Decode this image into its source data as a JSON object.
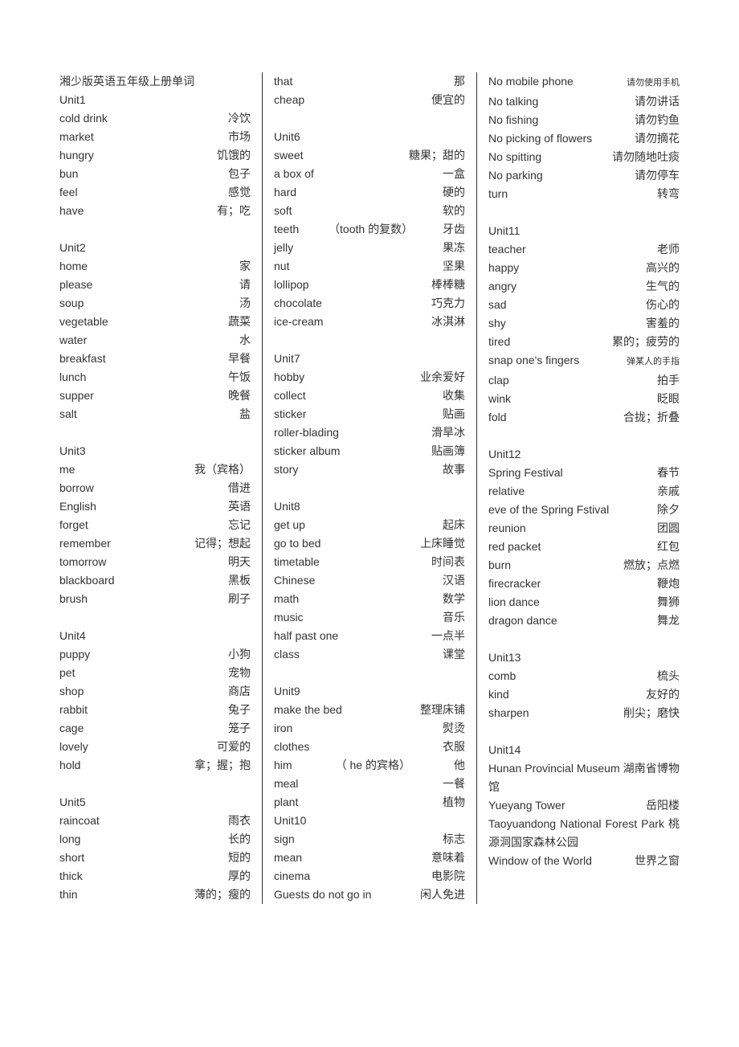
{
  "title": "湘少版英语五年级上册单词",
  "columns": [
    [
      {
        "type": "title"
      },
      {
        "type": "unit",
        "t": "Unit1"
      },
      {
        "type": "row",
        "en": "cold drink",
        "zh": "冷饮"
      },
      {
        "type": "row",
        "en": "market",
        "zh": "市场"
      },
      {
        "type": "row",
        "en": "hungry",
        "zh": "饥饿的"
      },
      {
        "type": "row",
        "en": "bun",
        "zh": "包子"
      },
      {
        "type": "row",
        "en": "feel",
        "zh": "感觉"
      },
      {
        "type": "row",
        "en": "have",
        "zh": "有；吃"
      },
      {
        "type": "blank"
      },
      {
        "type": "unit",
        "t": "Unit2"
      },
      {
        "type": "row",
        "en": "home",
        "zh": "家"
      },
      {
        "type": "row",
        "en": "please",
        "zh": "请"
      },
      {
        "type": "row",
        "en": "soup",
        "zh": "汤"
      },
      {
        "type": "row",
        "en": "vegetable",
        "zh": "蔬菜"
      },
      {
        "type": "row",
        "en": "water",
        "zh": "水"
      },
      {
        "type": "row",
        "en": "breakfast",
        "zh": "早餐"
      },
      {
        "type": "row",
        "en": "lunch",
        "zh": "午饭"
      },
      {
        "type": "row",
        "en": "supper",
        "zh": "晚餐"
      },
      {
        "type": "row",
        "en": "salt",
        "zh": "盐"
      },
      {
        "type": "blank"
      },
      {
        "type": "unit",
        "t": "Unit3"
      },
      {
        "type": "row",
        "en": "me",
        "zh": "我（宾格）"
      },
      {
        "type": "row",
        "en": "borrow",
        "zh": "借进"
      },
      {
        "type": "row",
        "en": "English",
        "zh": "英语"
      },
      {
        "type": "row",
        "en": "forget",
        "zh": "忘记"
      },
      {
        "type": "row",
        "en": "remember",
        "zh": "记得；想起"
      },
      {
        "type": "row",
        "en": "tomorrow",
        "zh": "明天"
      },
      {
        "type": "row",
        "en": "blackboard",
        "zh": "黑板"
      },
      {
        "type": "row",
        "en": "brush",
        "zh": "刷子"
      },
      {
        "type": "blank"
      },
      {
        "type": "unit",
        "t": "Unit4"
      },
      {
        "type": "row",
        "en": "puppy",
        "zh": "小狗"
      },
      {
        "type": "row",
        "en": "pet",
        "zh": "宠物"
      },
      {
        "type": "row",
        "en": "shop",
        "zh": "商店"
      },
      {
        "type": "row",
        "en": "rabbit",
        "zh": "兔子"
      },
      {
        "type": "row",
        "en": "cage",
        "zh": "笼子"
      },
      {
        "type": "row",
        "en": "lovely",
        "zh": "可爱的"
      },
      {
        "type": "row",
        "en": "hold",
        "zh": "拿；握；抱"
      },
      {
        "type": "blank"
      },
      {
        "type": "unit",
        "t": "Unit5"
      },
      {
        "type": "row",
        "en": "raincoat",
        "zh": "雨衣"
      },
      {
        "type": "row",
        "en": "long",
        "zh": "长的"
      },
      {
        "type": "row",
        "en": "short",
        "zh": "短的"
      },
      {
        "type": "row",
        "en": "thick",
        "zh": "厚的"
      },
      {
        "type": "row",
        "en": "thin",
        "zh": "薄的；瘦的"
      }
    ],
    [
      {
        "type": "row",
        "en": "that",
        "zh": "那"
      },
      {
        "type": "row",
        "en": "cheap",
        "zh": "便宜的"
      },
      {
        "type": "blank"
      },
      {
        "type": "unit",
        "t": "Unit6"
      },
      {
        "type": "row",
        "en": "sweet",
        "zh": "糖果；甜的"
      },
      {
        "type": "row",
        "en": "a box of",
        "zh": "一盒"
      },
      {
        "type": "row",
        "en": "hard",
        "zh": "硬的"
      },
      {
        "type": "row",
        "en": "soft",
        "zh": "软的"
      },
      {
        "type": "row3",
        "en": "teeth",
        "mid": "（tooth 的复数）",
        "zh": "牙齿"
      },
      {
        "type": "row",
        "en": "jelly",
        "zh": "果冻"
      },
      {
        "type": "row",
        "en": "nut",
        "zh": "坚果"
      },
      {
        "type": "row",
        "en": "lollipop",
        "zh": "棒棒糖"
      },
      {
        "type": "row",
        "en": "chocolate",
        "zh": "巧克力"
      },
      {
        "type": "row",
        "en": "ice-cream",
        "zh": "冰淇淋"
      },
      {
        "type": "blank"
      },
      {
        "type": "unit",
        "t": "Unit7"
      },
      {
        "type": "row",
        "en": "hobby",
        "zh": "业余爱好"
      },
      {
        "type": "row",
        "en": "collect",
        "zh": "收集"
      },
      {
        "type": "row",
        "en": "sticker",
        "zh": "贴画"
      },
      {
        "type": "row",
        "en": "roller-blading",
        "zh": "滑旱冰"
      },
      {
        "type": "row",
        "en": "sticker album",
        "zh": "贴画簿"
      },
      {
        "type": "row",
        "en": "story",
        "zh": "故事"
      },
      {
        "type": "blank"
      },
      {
        "type": "unit",
        "t": "Unit8"
      },
      {
        "type": "row",
        "en": "get up",
        "zh": "起床"
      },
      {
        "type": "row",
        "en": "go to bed",
        "zh": "上床睡觉"
      },
      {
        "type": "row",
        "en": "timetable",
        "zh": "时间表"
      },
      {
        "type": "row",
        "en": "Chinese",
        "zh": "汉语"
      },
      {
        "type": "row",
        "en": "math",
        "zh": "数学"
      },
      {
        "type": "row",
        "en": "music",
        "zh": "音乐"
      },
      {
        "type": "row",
        "en": "half past one",
        "zh": "一点半"
      },
      {
        "type": "row",
        "en": "class",
        "zh": "课堂"
      },
      {
        "type": "blank"
      },
      {
        "type": "unit",
        "t": "Unit9"
      },
      {
        "type": "row",
        "en": "make the bed",
        "zh": "整理床铺"
      },
      {
        "type": "row",
        "en": "iron",
        "zh": "熨烫"
      },
      {
        "type": "row",
        "en": "clothes",
        "zh": "衣服"
      },
      {
        "type": "row3",
        "en": "him",
        "mid": "（ he 的宾格）",
        "zh": "他"
      },
      {
        "type": "row",
        "en": "meal",
        "zh": "一餐"
      },
      {
        "type": "row",
        "en": "plant",
        "zh": "植物"
      },
      {
        "type": "unit",
        "t": "Unit10"
      },
      {
        "type": "row",
        "en": "sign",
        "zh": "标志"
      },
      {
        "type": "row",
        "en": "mean",
        "zh": "意味着"
      },
      {
        "type": "row",
        "en": "cinema",
        "zh": "电影院"
      },
      {
        "type": "row",
        "en": "Guests do not go in",
        "zh": "闲人免进"
      }
    ],
    [
      {
        "type": "row",
        "en": "No mobile phone",
        "zh": "请勿使用手机",
        "zhsmall": true
      },
      {
        "type": "row",
        "en": "No talking",
        "zh": "请勿讲话"
      },
      {
        "type": "row",
        "en": "No fishing",
        "zh": "请勿钓鱼"
      },
      {
        "type": "row",
        "en": "No picking of flowers",
        "zh": "请勿摘花"
      },
      {
        "type": "row",
        "en": "No spitting",
        "zh": "请勿随地吐痰"
      },
      {
        "type": "row",
        "en": "No parking",
        "zh": "请勿停车"
      },
      {
        "type": "row",
        "en": "turn",
        "zh": "转弯"
      },
      {
        "type": "blank"
      },
      {
        "type": "unit",
        "t": "Unit11"
      },
      {
        "type": "row",
        "en": "teacher",
        "zh": "老师"
      },
      {
        "type": "row",
        "en": "happy",
        "zh": "高兴的"
      },
      {
        "type": "row",
        "en": "angry",
        "zh": "生气的"
      },
      {
        "type": "row",
        "en": "sad",
        "zh": "伤心的"
      },
      {
        "type": "row",
        "en": "shy",
        "zh": "害羞的"
      },
      {
        "type": "row",
        "en": "tired",
        "zh": "累的；疲劳的"
      },
      {
        "type": "row",
        "en": "snap one's fingers",
        "zh": "弹某人的手指",
        "zhsmall": true
      },
      {
        "type": "row",
        "en": "clap",
        "zh": "拍手"
      },
      {
        "type": "row",
        "en": "wink",
        "zh": "眨眼"
      },
      {
        "type": "row",
        "en": "fold",
        "zh": "合拢；折叠"
      },
      {
        "type": "blank"
      },
      {
        "type": "unit",
        "t": "Unit12"
      },
      {
        "type": "row",
        "en": "Spring Festival",
        "zh": "春节"
      },
      {
        "type": "row",
        "en": "relative",
        "zh": "亲戚"
      },
      {
        "type": "row",
        "en": "eve of the Spring Fstival",
        "zh": "除夕"
      },
      {
        "type": "row",
        "en": "reunion",
        "zh": "团圆"
      },
      {
        "type": "row",
        "en": "red packet",
        "zh": "红包"
      },
      {
        "type": "row",
        "en": "burn",
        "zh": "燃放；点燃"
      },
      {
        "type": "row",
        "en": "firecracker",
        "zh": "鞭炮"
      },
      {
        "type": "row",
        "en": "lion dance",
        "zh": "舞狮"
      },
      {
        "type": "row",
        "en": "dragon dance",
        "zh": "舞龙"
      },
      {
        "type": "blank"
      },
      {
        "type": "unit",
        "t": "Unit13"
      },
      {
        "type": "row",
        "en": "comb",
        "zh": "梳头"
      },
      {
        "type": "row",
        "en": "kind",
        "zh": "友好的"
      },
      {
        "type": "row",
        "en": "sharpen",
        "zh": "削尖；磨快"
      },
      {
        "type": "blank"
      },
      {
        "type": "unit",
        "t": "Unit14"
      },
      {
        "type": "wrap",
        "t": "Hunan Provincial Museum 湖南省博物馆"
      },
      {
        "type": "row",
        "en": "Yueyang Tower",
        "zh": "岳阳楼"
      },
      {
        "type": "wrap",
        "t": "Taoyuandong National Forest Park  桃源洞国家森林公园"
      },
      {
        "type": "row",
        "en": "Window of the World",
        "zh": "世界之窗"
      }
    ]
  ]
}
